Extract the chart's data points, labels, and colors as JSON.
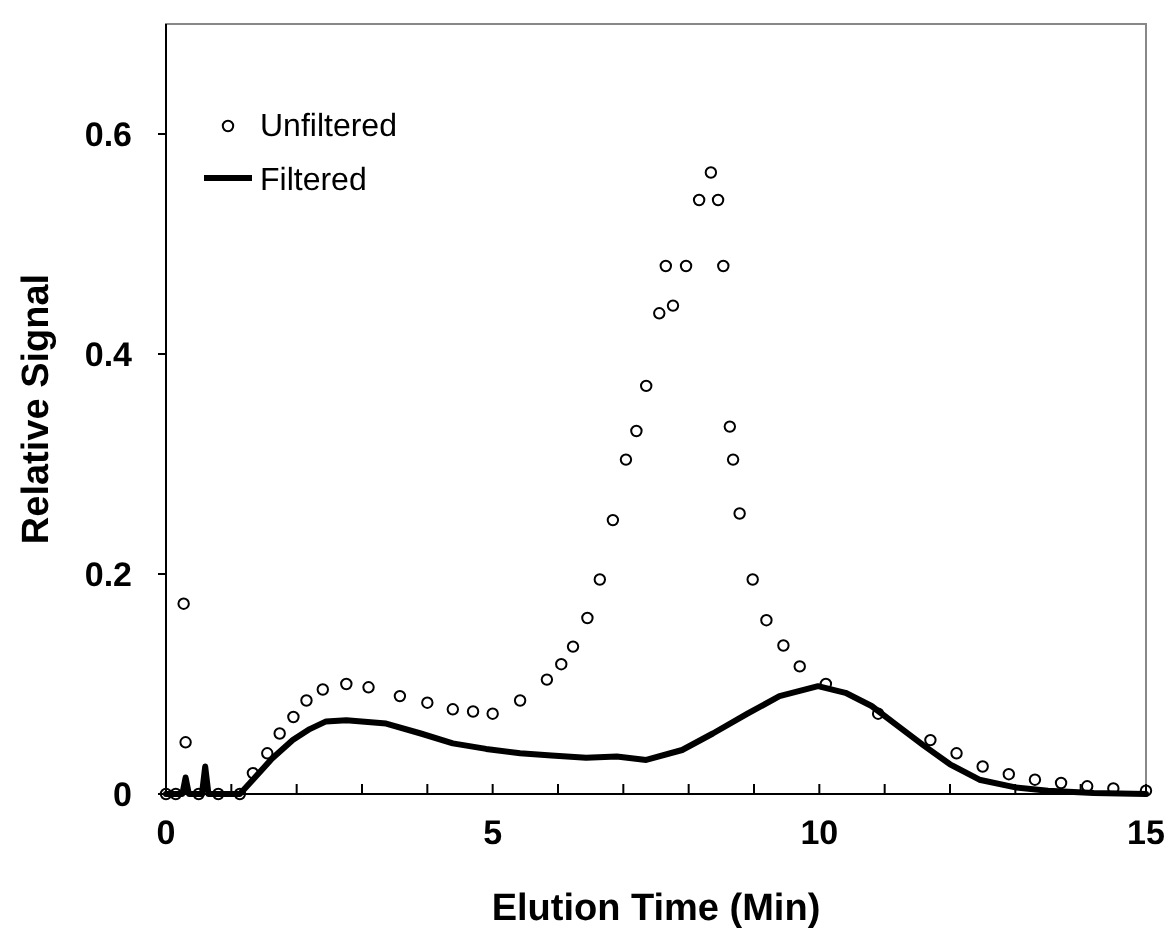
{
  "chart_data": {
    "type": "line",
    "xlabel": "Elution Time (Min)",
    "ylabel": "Relative Signal",
    "xlim": [
      0,
      15
    ],
    "ylim": [
      0,
      0.7
    ],
    "xticks": [
      0,
      {
        "value": 1,
        "label": null
      },
      {
        "value": 2,
        "label": null
      },
      {
        "value": 3,
        "label": null
      },
      {
        "value": 4,
        "label": null
      },
      5,
      {
        "value": 6,
        "label": null
      },
      {
        "value": 7,
        "label": null
      },
      {
        "value": 8,
        "label": null
      },
      {
        "value": 9,
        "label": null
      },
      10,
      {
        "value": 11,
        "label": null
      },
      {
        "value": 12,
        "label": null
      },
      {
        "value": 13,
        "label": null
      },
      {
        "value": 14,
        "label": null
      },
      15
    ],
    "yticks": [
      0,
      0.2,
      0.4,
      0.6
    ],
    "grid": false,
    "legend": "top left",
    "series": [
      {
        "name": "Unfiltered",
        "type": "scatter",
        "marker": "circle",
        "color": "#000000",
        "x": [
          0,
          0.15,
          0.27,
          0.3,
          0.5,
          0.8,
          1.13,
          1.33,
          1.55,
          1.74,
          1.95,
          2.15,
          2.4,
          2.76,
          3.1,
          3.58,
          4.0,
          4.39,
          4.7,
          5.0,
          5.42,
          5.83,
          6.05,
          6.23,
          6.45,
          6.64,
          6.84,
          7.04,
          7.2,
          7.35,
          7.55,
          7.65,
          7.76,
          7.96,
          8.16,
          8.34,
          8.45,
          8.53,
          8.63,
          8.68,
          8.78,
          8.98,
          9.19,
          9.45,
          9.7,
          10.1,
          10.9,
          11.7,
          12.1,
          12.5,
          12.9,
          13.3,
          13.7,
          14.1,
          14.5,
          15
        ],
        "values": [
          0,
          0,
          0.173,
          0.047,
          0,
          0,
          0,
          0.019,
          0.037,
          0.055,
          0.07,
          0.085,
          0.095,
          0.1,
          0.097,
          0.089,
          0.083,
          0.077,
          0.075,
          0.073,
          0.085,
          0.104,
          0.118,
          0.134,
          0.16,
          0.195,
          0.249,
          0.304,
          0.33,
          0.371,
          0.437,
          0.48,
          0.444,
          0.48,
          0.54,
          0.565,
          0.54,
          0.48,
          0.334,
          0.304,
          0.255,
          0.195,
          0.158,
          0.135,
          0.116,
          0.1,
          0.073,
          0.049,
          0.037,
          0.025,
          0.018,
          0.013,
          0.01,
          0.007,
          0.005,
          0.003
        ]
      },
      {
        "name": "Filtered",
        "type": "line",
        "marker": "none",
        "line_style": "solid",
        "color": "#000000",
        "x": [
          0,
          0.25,
          0.3,
          0.35,
          0.55,
          0.6,
          0.65,
          1.13,
          1.33,
          1.62,
          1.94,
          2.2,
          2.45,
          2.76,
          3.37,
          3.9,
          4.39,
          4.9,
          5.42,
          5.9,
          6.43,
          6.9,
          7.35,
          7.9,
          8.37,
          8.9,
          9.39,
          9.98,
          10.4,
          10.8,
          11.2,
          11.6,
          12.0,
          12.45,
          13.0,
          13.5,
          14.2,
          15
        ],
        "values": [
          0,
          0,
          0.015,
          0,
          0,
          0.025,
          0,
          0,
          0.013,
          0.032,
          0.049,
          0.059,
          0.066,
          0.067,
          0.064,
          0.055,
          0.046,
          0.041,
          0.037,
          0.035,
          0.033,
          0.034,
          0.031,
          0.04,
          0.055,
          0.073,
          0.089,
          0.098,
          0.092,
          0.08,
          0.062,
          0.044,
          0.027,
          0.013,
          0.006,
          0.003,
          0.001,
          0
        ]
      }
    ]
  }
}
